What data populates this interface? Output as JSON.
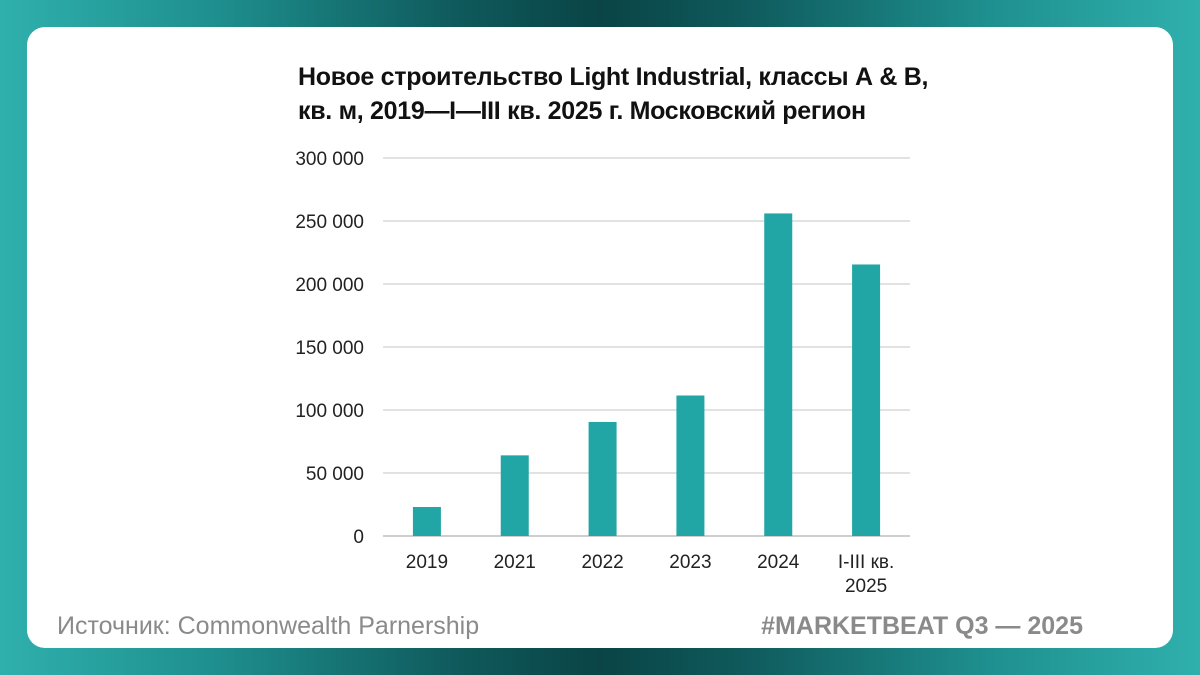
{
  "chart_data": {
    "type": "bar",
    "title_lines": [
      "Новое строительство Light Industrial, классы А & В,",
      "кв. м, 2019—I—III кв. 2025 г. Московский регион"
    ],
    "categories": [
      [
        "2019"
      ],
      [
        "2021"
      ],
      [
        "2022"
      ],
      [
        "2023"
      ],
      [
        "2024"
      ],
      [
        "I-III кв.",
        "2025"
      ]
    ],
    "values": [
      23000,
      64000,
      90500,
      111500,
      256000,
      215500
    ],
    "ylim": [
      0,
      300000
    ],
    "yticks": [
      0,
      50000,
      100000,
      150000,
      200000,
      250000,
      300000
    ],
    "ytick_labels": [
      "0",
      "50 000",
      "100 000",
      "150 000",
      "200 000",
      "250 000",
      "300 000"
    ],
    "grid": true,
    "xlabel": "",
    "ylabel": "",
    "bar_color": "#21a6a5",
    "grid_color": "#d9d9d9"
  },
  "footer": {
    "source": "Источник: Commonwealth Parnership",
    "tag": "#MARKETBEAT Q3 — 2025"
  }
}
